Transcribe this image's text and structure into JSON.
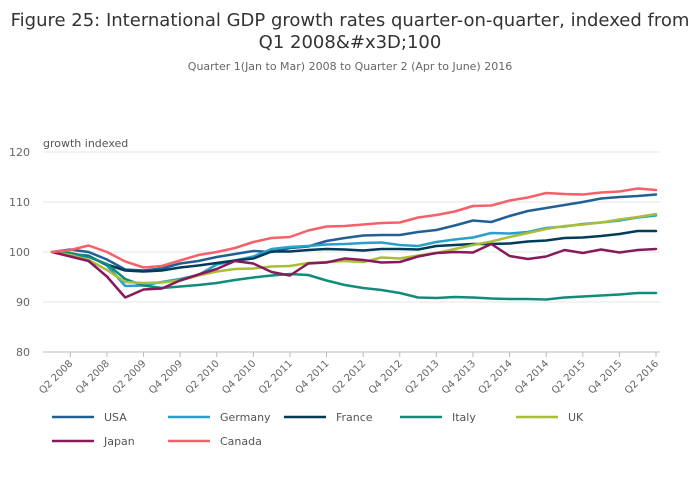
{
  "header": {
    "title_line1": "Figure 25: International GDP growth rates quarter-on-quarter, indexed from",
    "title_line2": "Q1 2008&#x3D;100",
    "subtitle": "Quarter 1(Jan to Mar) 2008 to Quarter 2 (Apr to June) 2016"
  },
  "chart_data": {
    "type": "line",
    "title": "Figure 25: International GDP growth rates quarter-on-quarter, indexed from Q1 2008&#x3D;100",
    "subtitle": "Quarter 1(Jan to Mar) 2008 to Quarter 2 (Apr to June) 2016",
    "ylabel": "growth indexed",
    "xlabel": "",
    "ylim": [
      80,
      120
    ],
    "yticks": [
      80,
      90,
      100,
      110,
      120
    ],
    "grid": "horizontal",
    "legend_position": "bottom",
    "x": [
      "Q1 2008",
      "Q2 2008",
      "Q3 2008",
      "Q4 2008",
      "Q1 2009",
      "Q2 2009",
      "Q3 2009",
      "Q4 2009",
      "Q1 2010",
      "Q2 2010",
      "Q3 2010",
      "Q4 2010",
      "Q1 2011",
      "Q2 2011",
      "Q3 2011",
      "Q4 2011",
      "Q1 2012",
      "Q2 2012",
      "Q3 2012",
      "Q4 2012",
      "Q1 2013",
      "Q2 2013",
      "Q3 2013",
      "Q4 2013",
      "Q1 2014",
      "Q2 2014",
      "Q3 2014",
      "Q4 2014",
      "Q1 2015",
      "Q2 2015",
      "Q3 2015",
      "Q4 2015",
      "Q1 2016",
      "Q2 2016"
    ],
    "x_tick_labels": [
      "Q2 2008",
      "Q4 2008",
      "Q2 2009",
      "Q4 2009",
      "Q2 2010",
      "Q4 2010",
      "Q2 2011",
      "Q4 2011",
      "Q2 2012",
      "Q4 2012",
      "Q2 2013",
      "Q4 2013",
      "Q2 2014",
      "Q4 2014",
      "Q2 2015",
      "Q4 2015",
      "Q2 2016"
    ],
    "series": [
      {
        "name": "USA",
        "color": "#206095",
        "values": [
          100,
          100.5,
          100,
          98.5,
          96.5,
          96.3,
          96.7,
          97.7,
          98.2,
          99,
          99.6,
          100.2,
          100,
          100.8,
          101.1,
          102.2,
          102.8,
          103.3,
          103.4,
          103.4,
          104,
          104.4,
          105.3,
          106.3,
          106,
          107.2,
          108.2,
          108.8,
          109.4,
          110,
          110.7,
          111,
          111.2,
          111.5
        ]
      },
      {
        "name": "Germany",
        "color": "#27a0cc",
        "values": [
          100,
          99.6,
          99.3,
          97.3,
          93.2,
          93.3,
          94,
          94.6,
          95.4,
          97.5,
          98.3,
          99.1,
          100.6,
          101,
          101.2,
          101.5,
          101.6,
          101.8,
          101.9,
          101.4,
          101.2,
          102,
          102.5,
          102.9,
          103.8,
          103.7,
          104,
          104.8,
          105.1,
          105.6,
          105.9,
          106.3,
          106.9,
          107.3
        ]
      },
      {
        "name": "France",
        "color": "#003c57",
        "values": [
          100,
          99.6,
          99.1,
          97.5,
          96.3,
          96.1,
          96.3,
          96.9,
          97.3,
          97.8,
          98.3,
          98.7,
          100.1,
          100.1,
          100.4,
          100.6,
          100.5,
          100.3,
          100.6,
          100.6,
          100.5,
          101.2,
          101.4,
          101.6,
          101.6,
          101.7,
          102.1,
          102.3,
          102.8,
          102.9,
          103.2,
          103.6,
          104.2,
          104.2
        ]
      },
      {
        "name": "Italy",
        "color": "#118c7b",
        "values": [
          100,
          99.8,
          99,
          97.6,
          94.6,
          93.3,
          92.8,
          93.1,
          93.4,
          93.8,
          94.4,
          94.9,
          95.3,
          95.6,
          95.4,
          94.3,
          93.4,
          92.8,
          92.4,
          91.8,
          90.9,
          90.8,
          91,
          90.9,
          90.7,
          90.6,
          90.6,
          90.5,
          90.9,
          91.1,
          91.3,
          91.5,
          91.8,
          91.8
        ]
      },
      {
        "name": "UK",
        "color": "#a8bd3a",
        "values": [
          100,
          99.4,
          98.4,
          96.4,
          94,
          93.8,
          93.9,
          94.3,
          95.3,
          96.1,
          96.6,
          96.7,
          97.1,
          97.2,
          97.8,
          98,
          98.2,
          98,
          98.9,
          98.7,
          99.3,
          99.8,
          100.6,
          101.4,
          102.1,
          103,
          103.8,
          104.6,
          105.2,
          105.5,
          105.9,
          106.5,
          107,
          107.6
        ]
      },
      {
        "name": "Japan",
        "color": "#871a5b",
        "values": [
          100,
          99.1,
          98.2,
          95.1,
          90.9,
          92.5,
          92.7,
          94.3,
          95.5,
          96.6,
          98.2,
          97.7,
          96,
          95.3,
          97.7,
          97.9,
          98.7,
          98.4,
          97.9,
          98,
          99.1,
          99.8,
          100,
          99.9,
          101.6,
          99.2,
          98.6,
          99.1,
          100.4,
          99.8,
          100.5,
          99.9,
          100.4,
          100.6
        ]
      },
      {
        "name": "Canada",
        "color": "#f66068",
        "values": [
          100,
          100.4,
          101.3,
          100,
          98.1,
          96.9,
          97.2,
          98.3,
          99.4,
          100,
          100.8,
          102,
          102.8,
          103,
          104.3,
          105.1,
          105.2,
          105.5,
          105.8,
          105.9,
          106.9,
          107.4,
          108.1,
          109.2,
          109.3,
          110.3,
          110.9,
          111.8,
          111.6,
          111.5,
          111.9,
          112.1,
          112.7,
          112.4
        ]
      }
    ]
  }
}
